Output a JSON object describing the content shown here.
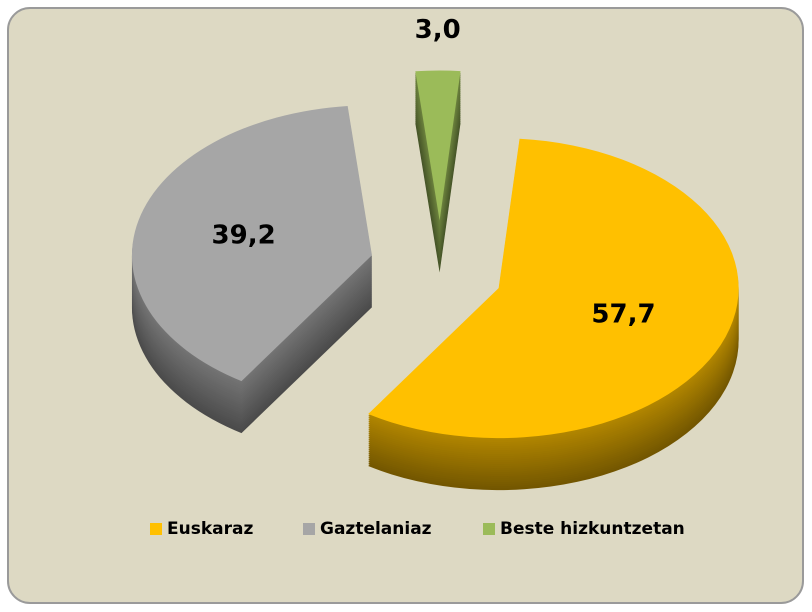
{
  "chart_data": {
    "type": "pie",
    "categories": [
      "Euskaraz",
      "Gaztelaniaz",
      "Beste hizkuntzetan"
    ],
    "values": [
      57.7,
      39.2,
      3.0
    ],
    "value_labels": [
      "57,7",
      "39,2",
      "3,0"
    ],
    "colors": [
      "#ffc000",
      "#a6a6a6",
      "#9bbb59"
    ],
    "legend": "bottom"
  }
}
